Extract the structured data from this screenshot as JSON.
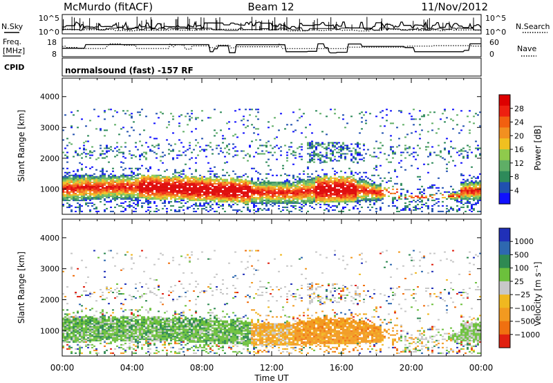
{
  "header": {
    "station": "McMurdo (fitACF)",
    "beam": "Beam 12",
    "date": "11/Nov/2012",
    "cpid_label": "CPID",
    "cpid_value": "normalsound (fast) -157 RF"
  },
  "param_panels": {
    "nsky": {
      "left_label": "N.Sky",
      "right_label": "N.Search",
      "left_ticks": [
        "10^5",
        "10^0"
      ],
      "right_ticks": [
        "10^5",
        "10^0"
      ]
    },
    "freq": {
      "left_label_1": "Freq.",
      "left_label_2": "[MHz]",
      "right_label": "Nave",
      "left_ticks": [
        "18",
        "8"
      ],
      "right_ticks": [
        "60",
        "0"
      ]
    }
  },
  "colors": {
    "power_scale": [
      "#1010ff",
      "#2050b0",
      "#2e8a5a",
      "#5fae66",
      "#8fca4c",
      "#f0c020",
      "#f29020",
      "#f26010",
      "#ee2010",
      "#dd0000"
    ],
    "velocity_scale": [
      "#2030b8",
      "#2e68b0",
      "#2f8a52",
      "#6cc03c",
      "#c8c8c8",
      "#f0b820",
      "#f29a20",
      "#f07010",
      "#e02010"
    ]
  },
  "chart_data": [
    {
      "type": "heatmap",
      "title": "Power",
      "xlabel": "",
      "ylabel": "Slant Range [km]",
      "x_ticks": [
        "00:00",
        "04:00",
        "08:00",
        "12:00",
        "16:00",
        "20:00",
        "00:00"
      ],
      "y_ticks": [
        "1000",
        "2000",
        "3000",
        "4000"
      ],
      "ylim": [
        180,
        4600
      ],
      "colorbar_label": "Power [dB]",
      "colorbar_ticks": [
        "4",
        "8",
        "12",
        "16",
        "20",
        "24",
        "28"
      ],
      "colorbar_range": [
        0,
        32
      ],
      "near_range_band_km": [
        500,
        1300
      ],
      "far_range_band_km": [
        1700,
        3500
      ]
    },
    {
      "type": "heatmap",
      "title": "Velocity",
      "xlabel": "Time UT",
      "ylabel": "Slant Range [km]",
      "x_ticks": [
        "00:00",
        "04:00",
        "08:00",
        "12:00",
        "16:00",
        "20:00",
        "00:00"
      ],
      "y_ticks": [
        "1000",
        "2000",
        "3000",
        "4000"
      ],
      "ylim": [
        180,
        4600
      ],
      "colorbar_label": "Velocity [m s⁻¹]",
      "colorbar_ticks": [
        "1000",
        "500",
        "100",
        "25",
        "−25",
        "−100",
        "−500",
        "−1000"
      ]
    }
  ]
}
